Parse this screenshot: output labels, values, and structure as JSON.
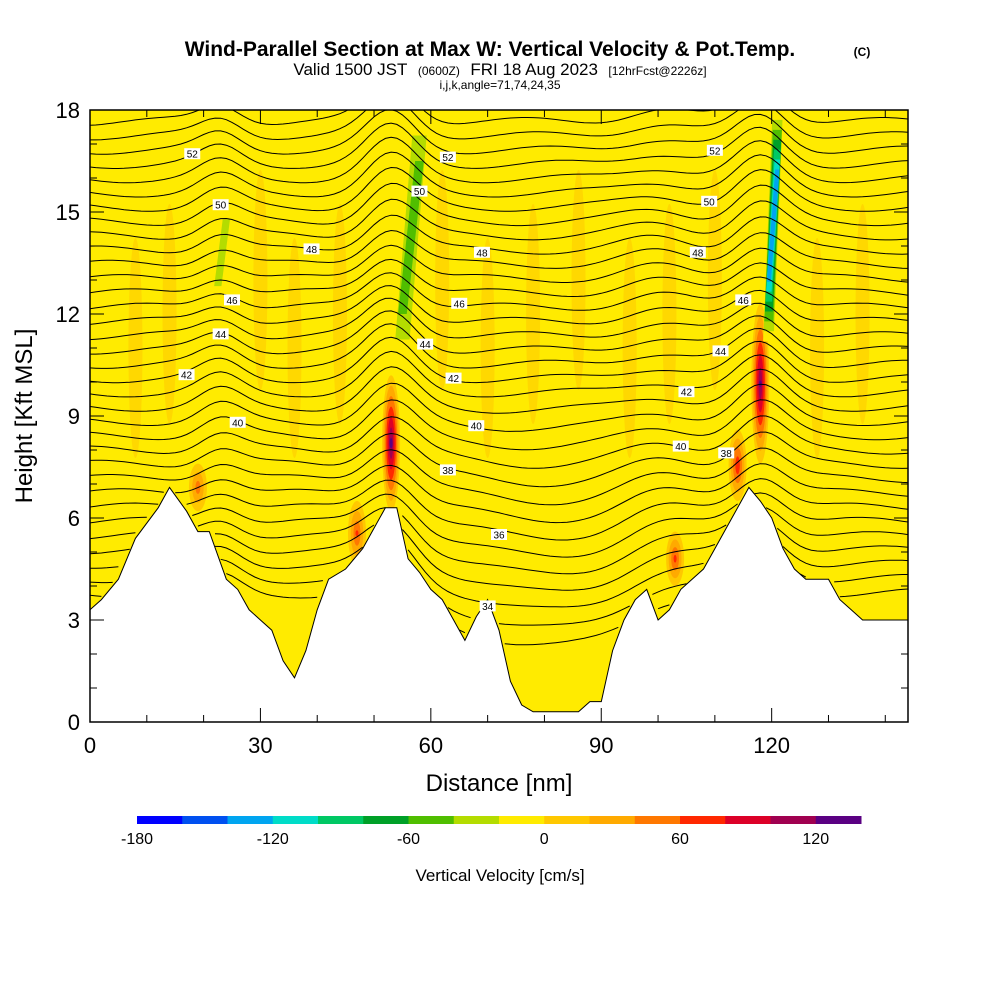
{
  "header": {
    "title": "Wind-Parallel Section at Max W: Vertical Velocity & Pot.Temp.",
    "title_suffix": "(C)",
    "valid_prefix": "Valid 1500 JST",
    "valid_utc": "(0600Z)",
    "valid_date": "FRI 18 Aug 2023",
    "forecast_info": "[12hrFcst@2226z]",
    "params": "i,j,k,angle=71,74,24,35"
  },
  "colorbar": {
    "title": "Vertical Velocity [cm/s]",
    "tick_labels": [
      "-180",
      "-120",
      "-60",
      "0",
      "60",
      "120"
    ],
    "tick_values": [
      -180,
      -120,
      -60,
      0,
      60,
      120
    ],
    "min": -180,
    "max": 140,
    "step": 20,
    "colors": [
      "#0000ff",
      "#0050f0",
      "#00a5f0",
      "#00dcc8",
      "#00c864",
      "#00a028",
      "#50be00",
      "#b4dc00",
      "#ffeb00",
      "#ffc800",
      "#ffaa00",
      "#ff7800",
      "#ff2800",
      "#dc0028",
      "#a00050",
      "#5a0082"
    ]
  },
  "chart_data": {
    "type": "heatmap",
    "title": "Wind-Parallel Section at Max W: Vertical Velocity & Pot.Temp.",
    "xlabel": "Distance [nm]",
    "ylabel": "Height [Kft MSL]",
    "xlim": [
      0,
      144
    ],
    "ylim": [
      0,
      18
    ],
    "x_ticks": [
      0,
      30,
      60,
      90,
      120
    ],
    "x_tick_labels": [
      "0",
      "30",
      "60",
      "90",
      "120"
    ],
    "y_ticks": [
      0,
      3,
      6,
      9,
      12,
      15,
      18
    ],
    "y_tick_labels": [
      "0",
      "3",
      "6",
      "9",
      "12",
      "15",
      "18"
    ],
    "terrain": {
      "x": [
        0,
        2,
        5,
        8,
        12,
        14,
        17,
        19,
        21,
        24,
        26,
        28,
        30,
        32,
        34,
        36,
        38,
        40,
        42,
        45,
        48,
        50,
        52,
        54,
        56,
        58,
        60,
        62,
        64,
        66,
        68,
        70,
        72,
        74,
        76,
        78,
        80,
        82,
        84,
        86,
        88,
        90,
        92,
        94,
        96,
        98,
        100,
        102,
        104,
        106,
        108,
        110,
        112,
        114,
        116,
        118,
        120,
        122,
        124,
        126,
        128,
        130,
        132,
        134,
        136,
        138,
        140,
        144
      ],
      "height": [
        3.3,
        3.6,
        4.2,
        5.4,
        6.3,
        6.9,
        6.2,
        5.6,
        5.6,
        4.2,
        3.9,
        3.3,
        3.0,
        2.7,
        1.8,
        1.3,
        2.1,
        3.3,
        4.2,
        4.5,
        5.1,
        5.7,
        6.3,
        6.3,
        4.8,
        4.4,
        3.9,
        3.6,
        3.0,
        2.4,
        3.1,
        3.6,
        2.7,
        1.2,
        0.5,
        0.3,
        0.3,
        0.3,
        0.3,
        0.3,
        0.6,
        0.6,
        2.1,
        3.0,
        3.6,
        3.9,
        3.0,
        3.3,
        3.9,
        4.2,
        4.5,
        5.1,
        5.7,
        6.3,
        6.9,
        6.5,
        6.0,
        5.1,
        4.5,
        4.2,
        4.2,
        4.2,
        3.6,
        3.3,
        3.0,
        3.0,
        3.0,
        3.0
      ]
    },
    "updraft_cores": [
      {
        "x": 53,
        "z_min": 6.2,
        "z_max": 10.2,
        "w_max_cm_s": 130
      },
      {
        "x": 118,
        "z_min": 7.6,
        "z_max": 12.3,
        "w_max_cm_s": 125
      },
      {
        "x": 114,
        "z_min": 6.5,
        "z_max": 8.6,
        "w_max_cm_s": 80
      },
      {
        "x": 103,
        "z_min": 4.0,
        "z_max": 5.6,
        "w_max_cm_s": 70
      },
      {
        "x": 47,
        "z_min": 4.6,
        "z_max": 6.5,
        "w_max_cm_s": 65
      },
      {
        "x": 19,
        "z_min": 6.2,
        "z_max": 7.6,
        "w_max_cm_s": 55
      }
    ],
    "downdraft_bands": [
      {
        "x": [
          55,
          58
        ],
        "z_min": 10.5,
        "z_max": 18,
        "w_min_cm_s": -60
      },
      {
        "x": [
          119.5,
          121
        ],
        "z_min": 11.2,
        "z_max": 18,
        "w_min_cm_s": -140
      },
      {
        "x": [
          22.5,
          24
        ],
        "z_min": 12.4,
        "z_max": 15.2,
        "w_min_cm_s": -40
      }
    ],
    "potential_temperature": {
      "units": "C",
      "contour_labels": [
        {
          "value": "52",
          "x": 18,
          "z": 16.7
        },
        {
          "value": "52",
          "x": 63,
          "z": 16.6
        },
        {
          "value": "52",
          "x": 110,
          "z": 16.8
        },
        {
          "value": "50",
          "x": 23,
          "z": 15.2
        },
        {
          "value": "50",
          "x": 58,
          "z": 15.6
        },
        {
          "value": "50",
          "x": 109,
          "z": 15.3
        },
        {
          "value": "48",
          "x": 39,
          "z": 13.9
        },
        {
          "value": "48",
          "x": 69,
          "z": 13.8
        },
        {
          "value": "48",
          "x": 107,
          "z": 13.8
        },
        {
          "value": "46",
          "x": 25,
          "z": 12.4
        },
        {
          "value": "46",
          "x": 65,
          "z": 12.3
        },
        {
          "value": "46",
          "x": 115,
          "z": 12.4
        },
        {
          "value": "44",
          "x": 23,
          "z": 11.4
        },
        {
          "value": "44",
          "x": 59,
          "z": 11.1
        },
        {
          "value": "44",
          "x": 111,
          "z": 10.9
        },
        {
          "value": "42",
          "x": 17,
          "z": 10.2
        },
        {
          "value": "42",
          "x": 64,
          "z": 10.1
        },
        {
          "value": "42",
          "x": 105,
          "z": 9.7
        },
        {
          "value": "40",
          "x": 26,
          "z": 8.8
        },
        {
          "value": "40",
          "x": 68,
          "z": 8.7
        },
        {
          "value": "40",
          "x": 104,
          "z": 8.1
        },
        {
          "value": "38",
          "x": 63,
          "z": 7.4
        },
        {
          "value": "38",
          "x": 112,
          "z": 7.9
        },
        {
          "value": "36",
          "x": 72,
          "z": 5.5
        },
        {
          "value": "34",
          "x": 70,
          "z": 3.4
        }
      ]
    }
  }
}
